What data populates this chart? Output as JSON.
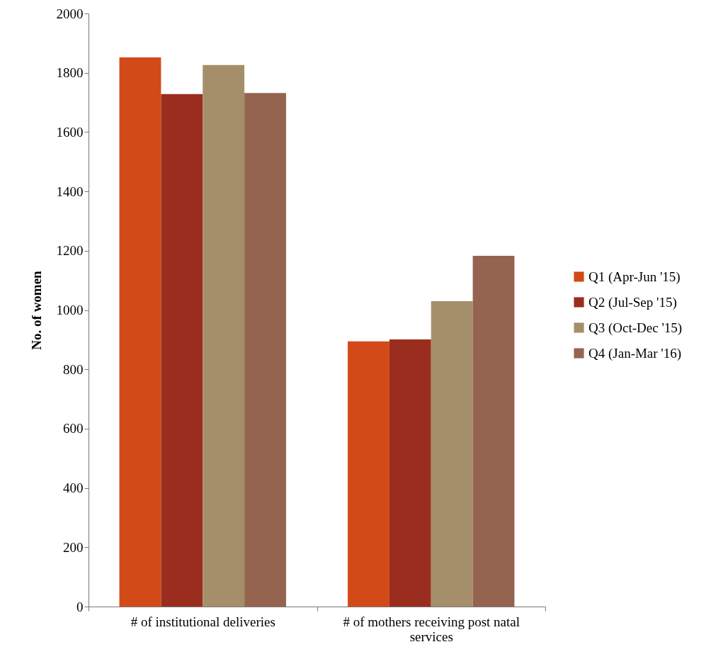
{
  "chart_data": {
    "type": "bar",
    "ylabel": "No. of women",
    "categories": [
      "# of institutional deliveries",
      "# of mothers receiving post natal services"
    ],
    "series": [
      {
        "name": "Q1 (Apr-Jun '15)",
        "color": "#d24a18",
        "values": [
          1852,
          894
        ]
      },
      {
        "name": "Q2 (Jul-Sep '15)",
        "color": "#9b2d1f",
        "values": [
          1728,
          901
        ]
      },
      {
        "name": "Q3 (Oct-Dec '15)",
        "color": "#a58f6b",
        "values": [
          1826,
          1030
        ]
      },
      {
        "name": "Q4 (Jan-Mar '16)",
        "color": "#956451",
        "values": [
          1732,
          1183
        ]
      }
    ],
    "ylim": [
      0,
      2000
    ],
    "yticks": [
      0,
      200,
      400,
      600,
      800,
      1000,
      1200,
      1400,
      1600,
      1800,
      2000
    ],
    "legend": "right",
    "grid": false
  }
}
